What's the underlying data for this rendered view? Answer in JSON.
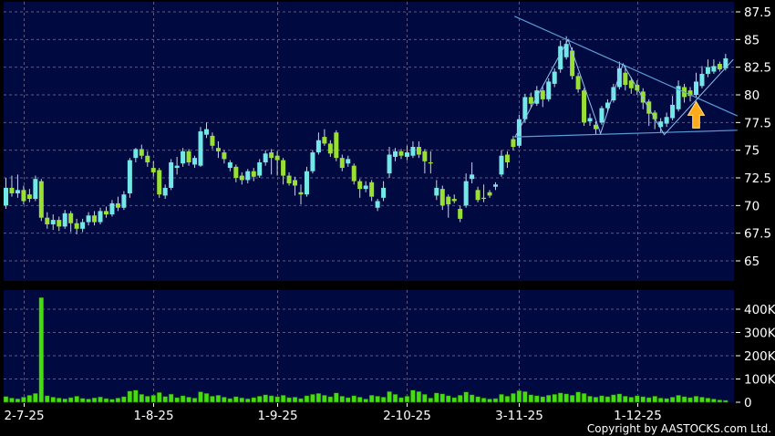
{
  "meta": {
    "copyright": "Copyright by AASTOCKS.com Ltd."
  },
  "colors": {
    "background": "#000000",
    "pane_background": "#000a40",
    "grid": "#5a5a84",
    "up_candle": "#74e8e8",
    "down_candle": "#99e033",
    "wick": "#ccd2dd",
    "volume_bar": "#44dd11",
    "trendline": "#5b9bd5",
    "zigzag": "#8fc3ef",
    "arrow_fill": "#ffaa1a",
    "arrow_edge": "#ffe680",
    "axis_text": "#ffffff"
  },
  "price_axis": {
    "ticks": [
      {
        "label": "87.5",
        "value": 87.5
      },
      {
        "label": "85",
        "value": 85
      },
      {
        "label": "82.5",
        "value": 82.5
      },
      {
        "label": "80",
        "value": 80
      },
      {
        "label": "77.5",
        "value": 77.5
      },
      {
        "label": "75",
        "value": 75
      },
      {
        "label": "72.5",
        "value": 72.5
      },
      {
        "label": "70",
        "value": 70
      },
      {
        "label": "67.5",
        "value": 67.5
      },
      {
        "label": "65",
        "value": 65
      }
    ]
  },
  "volume_axis": {
    "ticks": [
      {
        "label": "400K",
        "value_k": 400
      },
      {
        "label": "300K",
        "value_k": 300
      },
      {
        "label": "200K",
        "value_k": 200
      },
      {
        "label": "100K",
        "value_k": 100
      },
      {
        "label": "0",
        "value_k": 0
      }
    ]
  },
  "date_axis": {
    "ticks": [
      {
        "label": "2-7-25",
        "index": 3
      },
      {
        "label": "1-8-25",
        "index": 25
      },
      {
        "label": "1-9-25",
        "index": 46
      },
      {
        "label": "2-10-25",
        "index": 68
      },
      {
        "label": "3-11-25",
        "index": 87
      },
      {
        "label": "1-12-25",
        "index": 107
      }
    ]
  },
  "chart_data": {
    "type": "candlestick",
    "title": "",
    "ylabel": "Price",
    "ylim": [
      63.8,
      88.4
    ],
    "volume_ylim_k": [
      0,
      480
    ],
    "grid": true,
    "candles_ohlc": [
      [
        70.0,
        72.5,
        69.7,
        71.6
      ],
      [
        71.6,
        72.7,
        70.8,
        71.1
      ],
      [
        71.1,
        72.8,
        70.7,
        71.4
      ],
      [
        71.4,
        71.8,
        70.1,
        70.4
      ],
      [
        71.0,
        71.5,
        70.3,
        70.6
      ],
      [
        70.6,
        72.7,
        70.4,
        72.4
      ],
      [
        72.2,
        72.4,
        68.6,
        68.9
      ],
      [
        68.9,
        69.4,
        67.9,
        68.3
      ],
      [
        68.3,
        69.2,
        67.8,
        68.7
      ],
      [
        68.7,
        69.0,
        67.7,
        68.1
      ],
      [
        68.1,
        69.6,
        67.9,
        69.3
      ],
      [
        69.3,
        69.5,
        67.6,
        68.4
      ],
      [
        68.4,
        68.8,
        67.4,
        67.9
      ],
      [
        67.9,
        68.8,
        67.6,
        68.5
      ],
      [
        68.5,
        69.4,
        68.2,
        69.1
      ],
      [
        69.1,
        69.5,
        68.2,
        68.5
      ],
      [
        68.5,
        69.8,
        68.3,
        69.5
      ],
      [
        69.5,
        69.9,
        68.9,
        69.2
      ],
      [
        69.2,
        70.5,
        69.0,
        70.2
      ],
      [
        70.2,
        70.8,
        69.5,
        69.8
      ],
      [
        69.8,
        71.3,
        69.6,
        71.0
      ],
      [
        71.1,
        74.3,
        70.7,
        74.1
      ],
      [
        74.3,
        75.2,
        73.9,
        75.1
      ],
      [
        75.1,
        75.5,
        74.2,
        74.5
      ],
      [
        74.5,
        74.9,
        73.5,
        73.9
      ],
      [
        73.4,
        74.0,
        72.6,
        73.0
      ],
      [
        73.2,
        73.4,
        70.7,
        71.0
      ],
      [
        70.9,
        71.9,
        70.6,
        71.6
      ],
      [
        71.6,
        74.2,
        71.4,
        73.9
      ],
      [
        73.4,
        74.4,
        72.8,
        73.6
      ],
      [
        73.8,
        75.2,
        73.5,
        74.9
      ],
      [
        74.9,
        75.1,
        73.6,
        73.9
      ],
      [
        73.7,
        74.5,
        73.4,
        74.3
      ],
      [
        73.6,
        77.1,
        73.5,
        76.7
      ],
      [
        76.4,
        77.5,
        76.1,
        76.9
      ],
      [
        76.3,
        76.6,
        75.1,
        75.4
      ],
      [
        75.2,
        75.8,
        74.3,
        74.9
      ],
      [
        74.8,
        75.0,
        73.8,
        74.2
      ],
      [
        73.4,
        74.1,
        73.1,
        73.9
      ],
      [
        73.5,
        73.7,
        72.1,
        72.5
      ],
      [
        72.7,
        73.0,
        71.9,
        72.3
      ],
      [
        72.3,
        73.3,
        72.0,
        73.1
      ],
      [
        73.1,
        73.4,
        72.2,
        72.6
      ],
      [
        72.7,
        74.2,
        72.5,
        73.9
      ],
      [
        73.9,
        75.0,
        73.6,
        74.7
      ],
      [
        74.8,
        75.1,
        72.8,
        74.3
      ],
      [
        74.5,
        74.9,
        72.7,
        74.1
      ],
      [
        74.1,
        74.3,
        71.9,
        72.7
      ],
      [
        72.7,
        73.0,
        71.8,
        72.0
      ],
      [
        72.3,
        72.6,
        70.9,
        71.8
      ],
      [
        71.2,
        71.9,
        70.1,
        71.0
      ],
      [
        71.0,
        73.5,
        70.8,
        73.1
      ],
      [
        73.1,
        75.0,
        72.9,
        74.8
      ],
      [
        74.8,
        76.6,
        74.6,
        75.9
      ],
      [
        76.2,
        76.9,
        75.4,
        75.6
      ],
      [
        75.6,
        75.9,
        74.4,
        74.7
      ],
      [
        76.6,
        76.8,
        74.0,
        74.3
      ],
      [
        74.3,
        74.6,
        73.1,
        73.4
      ],
      [
        73.8,
        74.5,
        73.5,
        74.2
      ],
      [
        73.6,
        73.8,
        71.9,
        72.2
      ],
      [
        72.2,
        72.4,
        70.7,
        71.5
      ],
      [
        71.5,
        72.2,
        71.2,
        71.8
      ],
      [
        72.1,
        72.3,
        70.4,
        70.8
      ],
      [
        69.8,
        70.6,
        69.5,
        70.4
      ],
      [
        70.7,
        72.2,
        70.4,
        71.6
      ],
      [
        72.9,
        75.3,
        72.5,
        74.6
      ],
      [
        74.4,
        75.2,
        74.0,
        74.9
      ],
      [
        74.9,
        75.1,
        74.2,
        74.5
      ],
      [
        74.4,
        75.4,
        74.1,
        74.8
      ],
      [
        74.5,
        75.8,
        74.3,
        75.3
      ],
      [
        75.3,
        75.8,
        74.3,
        74.6
      ],
      [
        74.9,
        75.1,
        72.9,
        74.0
      ],
      [
        73.9,
        74.9,
        72.9,
        73.8
      ],
      [
        70.9,
        72.3,
        70.5,
        71.6
      ],
      [
        71.5,
        71.8,
        69.6,
        70.0
      ],
      [
        70.8,
        71.0,
        68.9,
        70.1
      ],
      [
        70.6,
        71.0,
        70.2,
        70.4
      ],
      [
        69.7,
        70.0,
        68.5,
        68.8
      ],
      [
        70.0,
        72.9,
        69.8,
        72.2
      ],
      [
        72.4,
        73.9,
        72.0,
        72.8
      ],
      [
        71.4,
        71.7,
        70.3,
        70.5
      ],
      [
        70.7,
        71.9,
        70.3,
        70.6
      ],
      [
        71.2,
        71.4,
        70.7,
        70.9
      ],
      [
        71.7,
        72.1,
        71.4,
        71.9
      ],
      [
        72.8,
        75.0,
        72.6,
        74.5
      ],
      [
        74.6,
        74.9,
        73.4,
        73.9
      ],
      [
        76.0,
        76.3,
        75.0,
        75.3
      ],
      [
        75.4,
        78.2,
        75.2,
        77.8
      ],
      [
        77.8,
        80.1,
        77.5,
        79.8
      ],
      [
        79.8,
        80.2,
        78.8,
        79.2
      ],
      [
        79.2,
        80.8,
        79.0,
        80.4
      ],
      [
        80.4,
        80.7,
        78.9,
        79.6
      ],
      [
        79.6,
        81.5,
        79.4,
        81.2
      ],
      [
        81.0,
        82.4,
        80.7,
        82.1
      ],
      [
        82.3,
        84.9,
        82.0,
        84.4
      ],
      [
        83.4,
        85.3,
        83.2,
        84.6
      ],
      [
        84.0,
        84.3,
        81.4,
        81.7
      ],
      [
        81.7,
        82.0,
        80.2,
        80.5
      ],
      [
        80.4,
        80.6,
        77.2,
        77.5
      ],
      [
        77.6,
        78.3,
        77.2,
        77.9
      ],
      [
        77.3,
        77.6,
        76.4,
        76.9
      ],
      [
        77.5,
        79.0,
        77.3,
        78.8
      ],
      [
        78.8,
        79.6,
        78.4,
        79.3
      ],
      [
        79.5,
        81.0,
        79.3,
        80.7
      ],
      [
        80.7,
        83.0,
        80.5,
        82.4
      ],
      [
        82.0,
        82.6,
        80.4,
        80.9
      ],
      [
        81.3,
        81.6,
        80.1,
        80.6
      ],
      [
        80.9,
        81.3,
        80.0,
        80.4
      ],
      [
        80.3,
        80.6,
        78.7,
        79.3
      ],
      [
        79.4,
        79.6,
        77.2,
        78.3
      ],
      [
        78.4,
        78.6,
        76.9,
        77.8
      ],
      [
        77.1,
        77.9,
        76.6,
        77.6
      ],
      [
        77.4,
        78.4,
        77.1,
        78.0
      ],
      [
        77.9,
        79.9,
        77.7,
        79.1
      ],
      [
        78.7,
        81.3,
        78.5,
        80.8
      ],
      [
        80.7,
        81.0,
        79.3,
        79.8
      ],
      [
        80.4,
        80.7,
        79.4,
        79.9
      ],
      [
        80.0,
        82.0,
        79.8,
        81.2
      ],
      [
        80.8,
        82.6,
        80.6,
        81.9
      ],
      [
        81.9,
        83.2,
        81.6,
        82.5
      ],
      [
        82.1,
        83.2,
        81.9,
        82.6
      ],
      [
        82.8,
        83.0,
        82.1,
        82.3
      ],
      [
        82.4,
        83.7,
        82.2,
        83.3
      ]
    ],
    "volumes_k": [
      25,
      18,
      15,
      22,
      30,
      38,
      450,
      28,
      22,
      18,
      15,
      20,
      26,
      17,
      14,
      19,
      23,
      16,
      13,
      18,
      24,
      48,
      52,
      34,
      26,
      30,
      42,
      25,
      35,
      20,
      28,
      22,
      18,
      45,
      38,
      26,
      30,
      22,
      16,
      24,
      19,
      15,
      20,
      26,
      32,
      28,
      24,
      30,
      20,
      22,
      16,
      28,
      34,
      38,
      30,
      24,
      40,
      26,
      20,
      28,
      22,
      14,
      30,
      26,
      22,
      46,
      34,
      20,
      26,
      52,
      46,
      34,
      18,
      40,
      36,
      28,
      20,
      30,
      44,
      32,
      24,
      18,
      14,
      16,
      34,
      26,
      38,
      50,
      46,
      32,
      28,
      24,
      30,
      34,
      40,
      36,
      30,
      44,
      38,
      26,
      22,
      28,
      24,
      32,
      36,
      26,
      22,
      28,
      24,
      20,
      26,
      18,
      16,
      22,
      30,
      24,
      20,
      26,
      22,
      18,
      14,
      10,
      8
    ],
    "annotations": {
      "resistance_line": {
        "points": [
          [
            86.2,
            87.1
          ],
          [
            124.0,
            78.1
          ]
        ]
      },
      "support_line": {
        "points": [
          [
            86.2,
            76.2
          ],
          [
            124.0,
            76.8
          ]
        ]
      },
      "zigzag_line": {
        "points": [
          [
            86.3,
            76.2
          ],
          [
            95.3,
            85.0
          ],
          [
            100.8,
            76.5
          ],
          [
            104.6,
            82.8
          ],
          [
            111.6,
            76.4
          ],
          [
            123.3,
            83.2
          ]
        ]
      },
      "up_arrow_marker": {
        "center_index": 117,
        "tip_price": 79.4,
        "base_price": 77.0
      }
    }
  }
}
